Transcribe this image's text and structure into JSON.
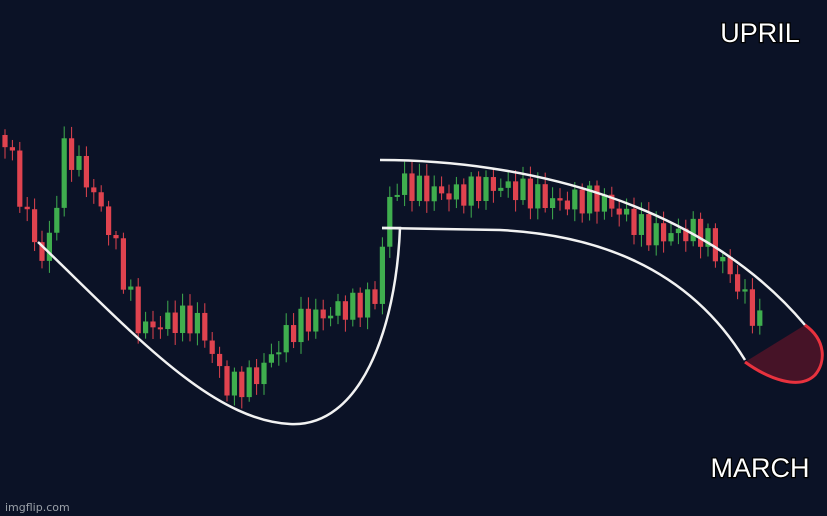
{
  "caption_top": "UPRIL",
  "caption_bottom": "MARCH",
  "watermark": "imgflip.com"
}
